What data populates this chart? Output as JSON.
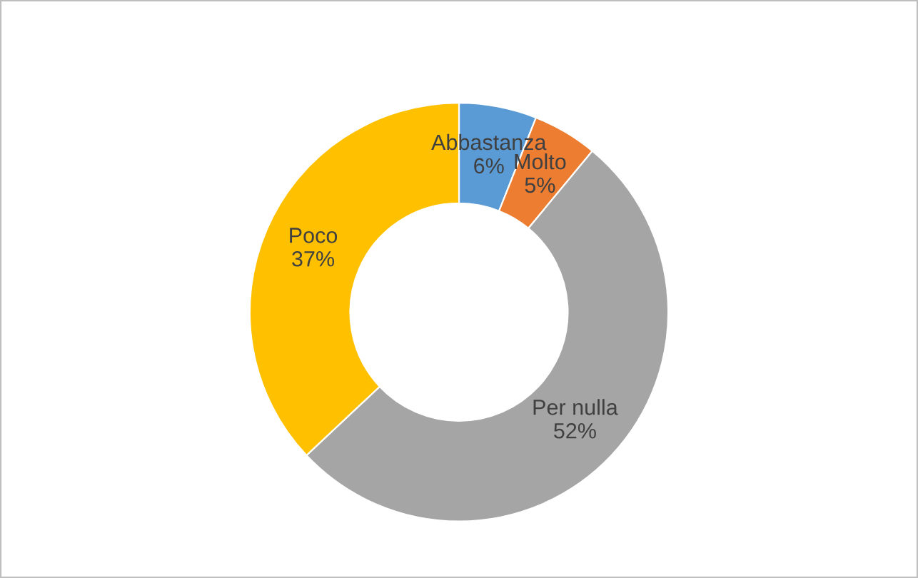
{
  "chart_data": {
    "type": "donut",
    "categories": [
      "Abbastanza",
      "Molto",
      "Per nulla",
      "Poco"
    ],
    "values": [
      6,
      5,
      52,
      37
    ],
    "colors": [
      "#5b9bd5",
      "#ed7d31",
      "#a5a5a5",
      "#ffc000"
    ],
    "value_labels": [
      "6%",
      "5%",
      "52%",
      "37%"
    ],
    "legend": false
  }
}
